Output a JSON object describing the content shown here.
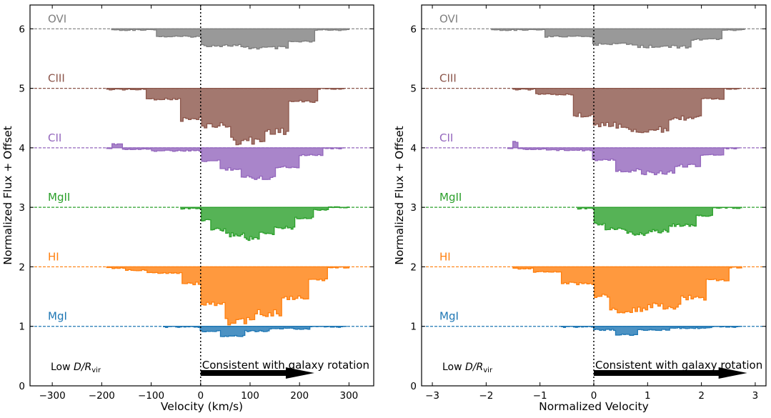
{
  "chart_data": [
    {
      "type": "step-area",
      "title": "",
      "xlabel": "Velocity (km/s)",
      "ylabel": "Normalized Flux + Offset",
      "xlim": [
        -345,
        350
      ],
      "ylim": [
        0,
        6.4
      ],
      "xticks": [
        -300,
        -200,
        -100,
        0,
        100,
        200,
        300
      ],
      "xtick_labels": [
        "−300",
        "−200",
        "−100",
        "0",
        "100",
        "200",
        "300"
      ],
      "yticks": [
        0,
        1,
        2,
        3,
        4,
        5,
        6
      ],
      "ytick_labels": [
        "0",
        "1",
        "2",
        "3",
        "4",
        "5",
        "6"
      ],
      "vline_x": 0,
      "annotation_left": "Low",
      "annotation_ratio": "D/R",
      "annotation_sub": "vir",
      "annotation_right": "Consistent with galaxy rotation",
      "arrow": {
        "from": 0,
        "to": 230
      },
      "series": [
        {
          "name": "OVI",
          "color": "#7f7f7f",
          "offset": 6,
          "x_start": -180,
          "x_end": 300,
          "segments": [
            [
              -180,
              -90,
              0.02
            ],
            [
              -90,
              0,
              0.13
            ],
            [
              0,
              80,
              0.28
            ],
            [
              80,
              180,
              0.32
            ],
            [
              180,
              230,
              0.22
            ],
            [
              230,
              300,
              0.02
            ]
          ]
        },
        {
          "name": "CIII",
          "color": "#8c564b",
          "offset": 5,
          "x_start": -190,
          "x_end": 290,
          "segments": [
            [
              -190,
              -150,
              0.02
            ],
            [
              -150,
              -110,
              0.02
            ],
            [
              -110,
              -40,
              0.18
            ],
            [
              -40,
              0,
              0.52
            ],
            [
              0,
              60,
              0.62
            ],
            [
              60,
              130,
              0.88
            ],
            [
              130,
              180,
              0.72
            ],
            [
              180,
              235,
              0.22
            ],
            [
              235,
              290,
              0.01
            ]
          ]
        },
        {
          "name": "CII",
          "color": "#9467bd",
          "offset": 4,
          "x_start": -190,
          "x_end": 290,
          "segments": [
            [
              -190,
              -180,
              0.02
            ],
            [
              -180,
              -160,
              -0.06
            ],
            [
              -160,
              -100,
              0.02
            ],
            [
              -100,
              0,
              0.05
            ],
            [
              0,
              40,
              0.22
            ],
            [
              40,
              80,
              0.35
            ],
            [
              80,
              150,
              0.5
            ],
            [
              150,
              200,
              0.32
            ],
            [
              200,
              245,
              0.12
            ],
            [
              245,
              290,
              0.01
            ]
          ]
        },
        {
          "name": "MgII",
          "color": "#2ca02c",
          "offset": 3,
          "x_start": -40,
          "x_end": 300,
          "segments": [
            [
              -40,
              0,
              0.02
            ],
            [
              0,
              20,
              0.22
            ],
            [
              20,
              50,
              0.38
            ],
            [
              50,
              90,
              0.46
            ],
            [
              90,
              120,
              0.52
            ],
            [
              120,
              150,
              0.45
            ],
            [
              150,
              190,
              0.34
            ],
            [
              190,
              230,
              0.18
            ],
            [
              230,
              260,
              0.04
            ],
            [
              260,
              300,
              0
            ]
          ]
        },
        {
          "name": "HI",
          "color": "#ff7f0e",
          "offset": 2,
          "x_start": -190,
          "x_end": 300,
          "segments": [
            [
              -190,
              -150,
              0.02
            ],
            [
              -150,
              -110,
              0.06
            ],
            [
              -110,
              -40,
              0.1
            ],
            [
              -40,
              0,
              0.28
            ],
            [
              0,
              50,
              0.62
            ],
            [
              50,
              110,
              0.92
            ],
            [
              110,
              165,
              0.78
            ],
            [
              165,
              220,
              0.52
            ],
            [
              220,
              255,
              0.22
            ],
            [
              255,
              300,
              0.01
            ]
          ]
        },
        {
          "name": "MgI",
          "color": "#1f77b4",
          "offset": 1,
          "x_start": -75,
          "x_end": 295,
          "segments": [
            [
              -75,
              0,
              0.01
            ],
            [
              0,
              40,
              0.08
            ],
            [
              40,
              90,
              0.16
            ],
            [
              90,
              140,
              0.08
            ],
            [
              140,
              220,
              0.04
            ],
            [
              220,
              295,
              0.01
            ]
          ]
        }
      ]
    },
    {
      "type": "step-area",
      "title": "",
      "xlabel": "Normalized Velocity",
      "ylabel": "Normalized Flux + Offset",
      "xlim": [
        -3.2,
        3.2
      ],
      "ylim": [
        0,
        6.4
      ],
      "xticks": [
        -3,
        -2,
        -1,
        0,
        1,
        2,
        3
      ],
      "xtick_labels": [
        "−3",
        "−2",
        "−1",
        "0",
        "1",
        "2",
        "3"
      ],
      "yticks": [
        0,
        1,
        2,
        3,
        4,
        5,
        6
      ],
      "ytick_labels": [
        "0",
        "1",
        "2",
        "3",
        "4",
        "5",
        "6"
      ],
      "vline_x": 0,
      "annotation_left": "Low",
      "annotation_ratio": "D/R",
      "annotation_sub": "vir",
      "annotation_right": "Consistent with galaxy rotation",
      "arrow": {
        "from": 0,
        "to": 2.85
      },
      "series": [
        {
          "name": "OVI",
          "color": "#7f7f7f",
          "offset": 6,
          "x_start": -1.9,
          "x_end": 2.8,
          "segments": [
            [
              -1.9,
              -0.9,
              0.02
            ],
            [
              -0.9,
              0,
              0.13
            ],
            [
              0,
              0.8,
              0.26
            ],
            [
              0.8,
              1.8,
              0.3
            ],
            [
              1.8,
              2.4,
              0.18
            ],
            [
              2.4,
              2.8,
              0.02
            ]
          ]
        },
        {
          "name": "CIII",
          "color": "#8c564b",
          "offset": 5,
          "x_start": -1.5,
          "x_end": 2.7,
          "segments": [
            [
              -1.5,
              -1.1,
              0.02
            ],
            [
              -1.1,
              -0.4,
              0.1
            ],
            [
              -0.4,
              0,
              0.45
            ],
            [
              0,
              0.6,
              0.62
            ],
            [
              0.6,
              1.4,
              0.7
            ],
            [
              1.4,
              2.0,
              0.5
            ],
            [
              2.0,
              2.4,
              0.18
            ],
            [
              2.4,
              2.7,
              0.01
            ]
          ]
        },
        {
          "name": "CII",
          "color": "#9467bd",
          "offset": 4,
          "x_start": -1.6,
          "x_end": 2.7,
          "segments": [
            [
              -1.6,
              -1.5,
              0.02
            ],
            [
              -1.5,
              -1.4,
              -0.1
            ],
            [
              -1.4,
              -0.9,
              0.02
            ],
            [
              -0.9,
              0,
              0.04
            ],
            [
              0,
              0.4,
              0.2
            ],
            [
              0.4,
              0.9,
              0.38
            ],
            [
              0.9,
              1.5,
              0.42
            ],
            [
              1.5,
              2.0,
              0.3
            ],
            [
              2.0,
              2.4,
              0.12
            ],
            [
              2.4,
              2.7,
              0.01
            ]
          ]
        },
        {
          "name": "MgII",
          "color": "#2ca02c",
          "offset": 3,
          "x_start": -0.3,
          "x_end": 2.75,
          "segments": [
            [
              -0.3,
              0,
              0.02
            ],
            [
              0,
              0.2,
              0.28
            ],
            [
              0.2,
              0.6,
              0.36
            ],
            [
              0.6,
              1.0,
              0.44
            ],
            [
              1.0,
              1.4,
              0.4
            ],
            [
              1.4,
              1.9,
              0.3
            ],
            [
              1.9,
              2.2,
              0.14
            ],
            [
              2.2,
              2.75,
              0.01
            ]
          ]
        },
        {
          "name": "HI",
          "color": "#ff7f0e",
          "offset": 2,
          "x_start": -1.5,
          "x_end": 2.75,
          "segments": [
            [
              -1.5,
              -1.1,
              0.03
            ],
            [
              -1.1,
              -0.6,
              0.08
            ],
            [
              -0.6,
              0,
              0.28
            ],
            [
              0,
              0.3,
              0.48
            ],
            [
              0.3,
              1.0,
              0.72
            ],
            [
              1.0,
              1.6,
              0.66
            ],
            [
              1.6,
              2.1,
              0.52
            ],
            [
              2.1,
              2.5,
              0.22
            ],
            [
              2.5,
              2.75,
              0.01
            ]
          ]
        },
        {
          "name": "MgI",
          "color": "#1f77b4",
          "offset": 1,
          "x_start": -0.6,
          "x_end": 2.75,
          "segments": [
            [
              -0.6,
              0,
              0.01
            ],
            [
              0,
              0.4,
              0.06
            ],
            [
              0.4,
              0.8,
              0.14
            ],
            [
              0.8,
              1.4,
              0.06
            ],
            [
              1.4,
              2.2,
              0.03
            ],
            [
              2.2,
              2.75,
              0.01
            ]
          ]
        }
      ]
    }
  ]
}
